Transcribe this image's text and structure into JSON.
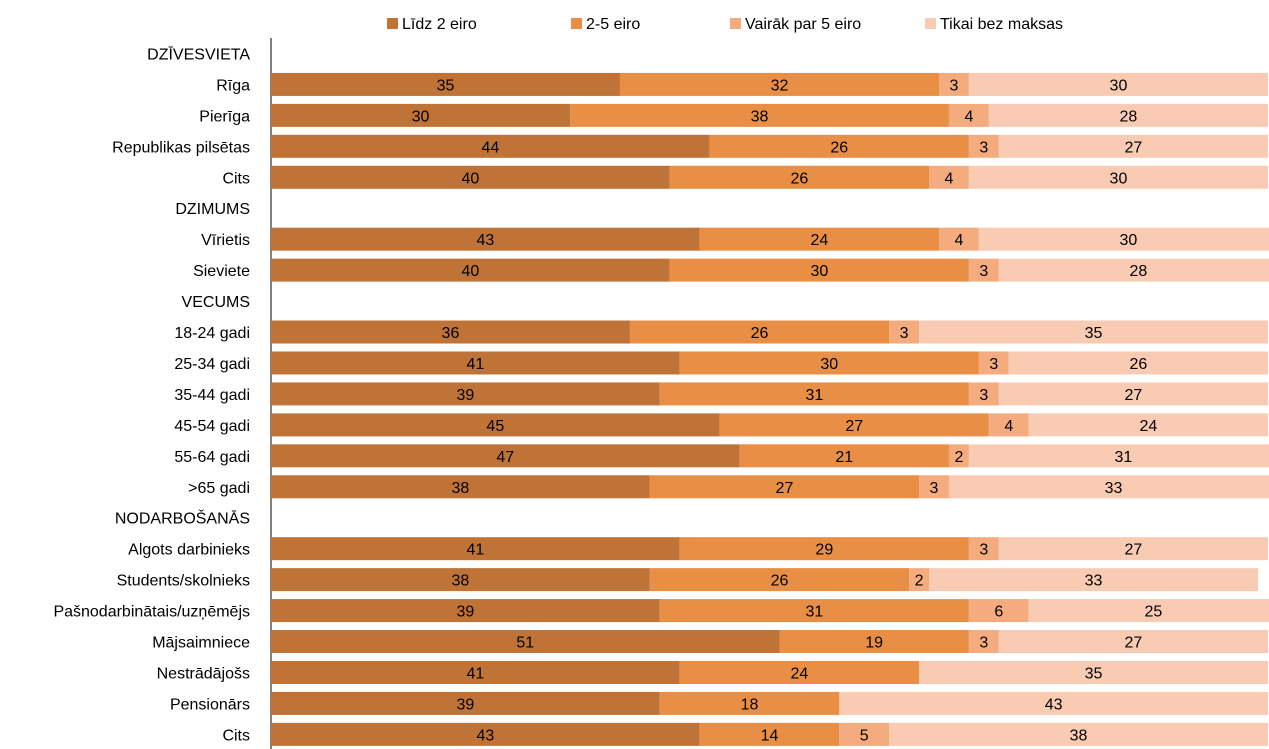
{
  "chart_data": {
    "type": "bar",
    "orientation": "horizontal",
    "stacked": true,
    "legend_position": "top",
    "grid": false,
    "xlim": [
      0,
      100
    ],
    "legend": [
      {
        "name": "Līdz 2 eiro",
        "color": "#C07336"
      },
      {
        "name": "2-5 eiro",
        "color": "#E88F45"
      },
      {
        "name": "Vairāk par 5 eiro",
        "color": "#F4AB7E"
      },
      {
        "name": "Tikai bez maksas",
        "color": "#F8CBB2"
      }
    ],
    "rows": [
      {
        "label": "DZĪVESVIETA",
        "header": true,
        "values": []
      },
      {
        "label": "Rīga",
        "values": [
          35,
          32,
          3,
          30
        ]
      },
      {
        "label": "Pierīga",
        "values": [
          30,
          38,
          4,
          28
        ]
      },
      {
        "label": "Republikas pilsētas",
        "values": [
          44,
          26,
          3,
          27
        ]
      },
      {
        "label": "Cits",
        "values": [
          40,
          26,
          4,
          30
        ]
      },
      {
        "label": "DZIMUMS",
        "header": true,
        "values": []
      },
      {
        "label": "Vīrietis",
        "values": [
          43,
          24,
          4,
          30
        ]
      },
      {
        "label": "Sieviete",
        "values": [
          40,
          30,
          3,
          28
        ]
      },
      {
        "label": "VECUMS",
        "header": true,
        "values": []
      },
      {
        "label": "18-24 gadi",
        "values": [
          36,
          26,
          3,
          35
        ]
      },
      {
        "label": "25-34 gadi",
        "values": [
          41,
          30,
          3,
          26
        ]
      },
      {
        "label": "35-44 gadi",
        "values": [
          39,
          31,
          3,
          27
        ]
      },
      {
        "label": "45-54 gadi",
        "values": [
          45,
          27,
          4,
          24
        ]
      },
      {
        "label": "55-64 gadi",
        "values": [
          47,
          21,
          2,
          31
        ]
      },
      {
        "label": ">65 gadi",
        "values": [
          38,
          27,
          3,
          33
        ]
      },
      {
        "label": "NODARBOŠANĀS",
        "header": true,
        "values": []
      },
      {
        "label": "Algots darbinieks",
        "values": [
          41,
          29,
          3,
          27
        ]
      },
      {
        "label": "Students/skolnieks",
        "values": [
          38,
          26,
          2,
          33
        ]
      },
      {
        "label": "Pašnodarbinātais/uzņēmējs",
        "values": [
          39,
          31,
          6,
          25
        ]
      },
      {
        "label": "Mājsaimniece",
        "values": [
          51,
          19,
          3,
          27
        ]
      },
      {
        "label": "Nestrādājošs",
        "values": [
          41,
          24,
          null,
          35
        ]
      },
      {
        "label": "Pensionārs",
        "values": [
          39,
          18,
          null,
          43
        ]
      },
      {
        "label": "Cits",
        "values": [
          43,
          14,
          5,
          38
        ]
      }
    ]
  }
}
